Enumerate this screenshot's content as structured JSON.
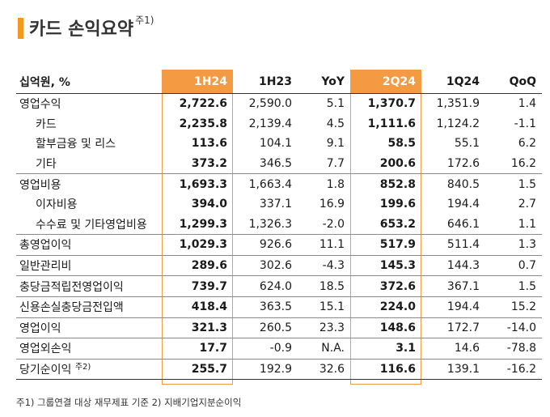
{
  "title": "카드 손익요약",
  "title_note": "주1)",
  "accent": "#f39a43",
  "headers": [
    "십억원, %",
    "1H24",
    "1H23",
    "YoY",
    "2Q24",
    "1Q24",
    "QoQ"
  ],
  "rows": [
    {
      "label": "영업수익",
      "v": [
        "2,722.6",
        "2,590.0",
        "5.1",
        "1,370.7",
        "1,351.9",
        "1.4"
      ]
    },
    {
      "label": "카드",
      "v": [
        "2,235.8",
        "2,139.4",
        "4.5",
        "1,111.6",
        "1,124.2",
        "-1.1"
      ]
    },
    {
      "label": "할부금융 및 리스",
      "v": [
        "113.6",
        "104.1",
        "9.1",
        "58.5",
        "55.1",
        "6.2"
      ]
    },
    {
      "label": "기타",
      "v": [
        "373.2",
        "346.5",
        "7.7",
        "200.6",
        "172.6",
        "16.2"
      ]
    },
    {
      "label": "영업비용",
      "v": [
        "1,693.3",
        "1,663.4",
        "1.8",
        "852.8",
        "840.5",
        "1.5"
      ]
    },
    {
      "label": "이자비용",
      "v": [
        "394.0",
        "337.1",
        "16.9",
        "199.6",
        "194.4",
        "2.7"
      ]
    },
    {
      "label": "수수료 및 기타영업비용",
      "v": [
        "1,299.3",
        "1,326.3",
        "-2.0",
        "653.2",
        "646.1",
        "1.1"
      ]
    },
    {
      "label": "총영업이익",
      "v": [
        "1,029.3",
        "926.6",
        "11.1",
        "517.9",
        "511.4",
        "1.3"
      ]
    },
    {
      "label": "일반관리비",
      "v": [
        "289.6",
        "302.6",
        "-4.3",
        "145.3",
        "144.3",
        "0.7"
      ]
    },
    {
      "label": "충당금적립전영업이익",
      "v": [
        "739.7",
        "624.0",
        "18.5",
        "372.6",
        "367.1",
        "1.5"
      ]
    },
    {
      "label": "신용손실충당금전입액",
      "v": [
        "418.4",
        "363.5",
        "15.1",
        "224.0",
        "194.4",
        "15.2"
      ]
    },
    {
      "label": "영업이익",
      "v": [
        "321.3",
        "260.5",
        "23.3",
        "148.6",
        "172.7",
        "-14.0"
      ]
    },
    {
      "label": "영업외손익",
      "v": [
        "17.7",
        "-0.9",
        "N.A.",
        "3.1",
        "14.6",
        "-78.8"
      ]
    },
    {
      "label": "당기순이익",
      "note": "주2)",
      "v": [
        "255.7",
        "192.9",
        "32.6",
        "116.6",
        "139.1",
        "-16.2"
      ]
    }
  ],
  "footnote": "주1) 그룹연결 대상 재무제표 기준   2) 지배기업지분순이익"
}
